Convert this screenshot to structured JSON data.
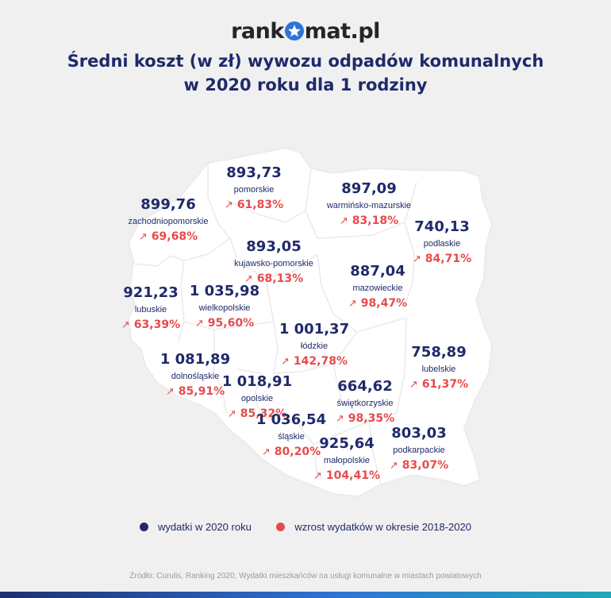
{
  "logo": {
    "left": "rank",
    "right": "mat.pl"
  },
  "title": {
    "line1": "Średni koszt (w zł) wywozu odpadów komunalnych",
    "line2": "w 2020 roku dla 1 rodziny"
  },
  "colors": {
    "navy": "#1f2a6b",
    "red": "#e84a4a",
    "brand_blue": "#2f73d6",
    "map_fill": "#ffffff",
    "background": "#f0f0f0"
  },
  "regions": [
    {
      "id": "zachodniopomorskie",
      "value": "899,76",
      "name": "zachodniopomorskie",
      "growth": "69,68%"
    },
    {
      "id": "pomorskie",
      "value": "893,73",
      "name": "pomorskie",
      "growth": "61,83%"
    },
    {
      "id": "warminsko-mazurskie",
      "value": "897,09",
      "name": "warmińsko-mazurskie",
      "growth": "83,18%"
    },
    {
      "id": "podlaskie",
      "value": "740,13",
      "name": "podlaskie",
      "growth": "84,71%"
    },
    {
      "id": "kujawsko-pomorskie",
      "value": "893,05",
      "name": "kujawsko-pomorskie",
      "growth": "68,13%"
    },
    {
      "id": "mazowieckie",
      "value": "887,04",
      "name": "mazowieckie",
      "growth": "98,47%"
    },
    {
      "id": "lubuskie",
      "value": "921,23",
      "name": "lubuskie",
      "growth": "63,39%"
    },
    {
      "id": "wielkopolskie",
      "value": "1 035,98",
      "name": "wielkopolskie",
      "growth": "95,60%"
    },
    {
      "id": "lodzkie",
      "value": "1 001,37",
      "name": "łódzkie",
      "growth": "142,78%"
    },
    {
      "id": "dolnoslaskie",
      "value": "1 081,89",
      "name": "dolnośląskie",
      "growth": "85,91%"
    },
    {
      "id": "lubelskie",
      "value": "758,89",
      "name": "lubelskie",
      "growth": "61,37%"
    },
    {
      "id": "opolskie",
      "value": "1 018,91",
      "name": "opolskie",
      "growth": "85,32%"
    },
    {
      "id": "swietokrzyskie",
      "value": "664,62",
      "name": "świętkorzyskie",
      "growth": "98,35%"
    },
    {
      "id": "slaskie",
      "value": "1 036,54",
      "name": "śląskie",
      "growth": "80,20%"
    },
    {
      "id": "malopolskie",
      "value": "925,64",
      "name": "małopolskie",
      "growth": "104,41%"
    },
    {
      "id": "podkarpackie",
      "value": "803,03",
      "name": "podkarpackie",
      "growth": "83,07%"
    }
  ],
  "legend": {
    "expenses": "wydatki w 2020 roku",
    "growth": "wzrost wydatków w okresie 2018-2020"
  },
  "source": "Źródło: Curulis, Ranking 2020, Wydatki mieszkańców na usługi komunalne w miastach powiatowych"
}
